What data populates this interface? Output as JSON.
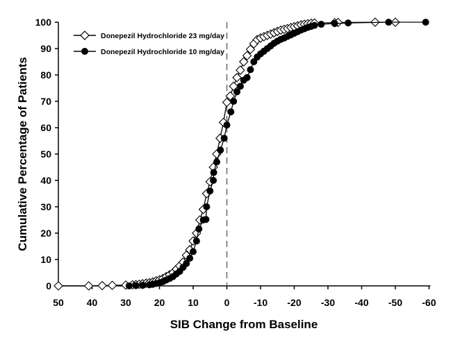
{
  "chart_data": {
    "type": "line",
    "title": "",
    "xlabel": "SIB Change from Baseline",
    "ylabel": "Cumulative Percentage of Patients",
    "xlim": [
      50,
      -60
    ],
    "ylim": [
      0,
      100
    ],
    "x_reversed": true,
    "xticks": [
      "50",
      "40",
      "30",
      "20",
      "10",
      "0",
      "-10",
      "-20",
      "-30",
      "-40",
      "-50",
      "-60"
    ],
    "xtick_values": [
      50,
      40,
      30,
      20,
      10,
      0,
      -10,
      -20,
      -30,
      -40,
      -50,
      -60
    ],
    "yticks": [
      "0",
      "10",
      "20",
      "30",
      "40",
      "50",
      "60",
      "70",
      "80",
      "90",
      "100"
    ],
    "ytick_values": [
      0,
      10,
      20,
      30,
      40,
      50,
      60,
      70,
      80,
      90,
      100
    ],
    "reference_line_x": 0,
    "legend_position": "top-left",
    "series": [
      {
        "name": "Donepezil Hydrochloride 23 mg/day",
        "marker": "open-diamond",
        "x": [
          50,
          41,
          37,
          34,
          30,
          28,
          27,
          26,
          25,
          24,
          23,
          22,
          21,
          20,
          19,
          18,
          17,
          16,
          15,
          14,
          13,
          12,
          11,
          10,
          9,
          8,
          7,
          6,
          5,
          4,
          3,
          2,
          1,
          0,
          -1,
          -2,
          -3,
          -4,
          -5,
          -6,
          -7,
          -8,
          -9,
          -10,
          -11,
          -12,
          -13,
          -14,
          -15,
          -16,
          -17,
          -18,
          -19,
          -20,
          -21,
          -22,
          -23,
          -24,
          -25,
          -26,
          -32,
          -33,
          -44,
          -50
        ],
        "y": [
          0,
          0,
          0.1,
          0.2,
          0.3,
          0.4,
          0.5,
          0.6,
          0.8,
          1,
          1.2,
          1.5,
          1.9,
          2.3,
          2.8,
          3.5,
          4.2,
          5,
          6.3,
          7.6,
          9,
          11.6,
          13.7,
          17,
          20,
          25,
          29,
          35,
          39.5,
          45,
          50,
          56,
          62,
          69.6,
          72,
          75.7,
          79,
          81.8,
          85,
          87.3,
          89.7,
          91.8,
          93.4,
          94,
          94.5,
          95,
          95.5,
          96,
          96.5,
          97,
          97.3,
          97.6,
          98,
          98.3,
          98.6,
          99,
          99.2,
          99.4,
          99.6,
          99.7,
          99.8,
          99.9,
          100,
          100
        ]
      },
      {
        "name": "Donepezil Hydrochloride 10 mg/day",
        "marker": "filled-circle",
        "x": [
          29,
          27,
          25,
          23,
          22,
          21,
          20,
          19,
          18,
          17,
          16,
          15,
          14,
          13,
          12,
          11,
          10,
          9,
          8.3,
          7,
          6.2,
          6,
          5,
          4,
          3.9,
          3,
          1.9,
          0.8,
          0,
          -1.2,
          -2,
          -3,
          -4,
          -5,
          -6,
          -7,
          -8,
          -9,
          -10,
          -11,
          -12,
          -13,
          -14,
          -15,
          -16,
          -17,
          -18,
          -19,
          -20,
          -21,
          -22,
          -23,
          -24,
          -25,
          -26,
          -28,
          -32,
          -36,
          -48,
          -59
        ],
        "y": [
          0,
          0.1,
          0.2,
          0.4,
          0.6,
          0.9,
          1.2,
          1.6,
          2.2,
          2.8,
          3.5,
          4.5,
          5.5,
          7,
          8.5,
          10.5,
          13,
          17,
          21.6,
          25,
          25.2,
          30,
          36,
          40,
          43,
          47,
          51.5,
          56,
          61,
          66,
          70,
          73.6,
          75.7,
          78,
          79,
          82,
          85,
          86.8,
          88,
          89,
          90,
          91,
          92,
          92.8,
          93.5,
          94,
          94.6,
          95.2,
          95.8,
          96.4,
          97,
          97.5,
          98,
          98.4,
          98.8,
          99.2,
          99.5,
          99.7,
          100,
          100
        ]
      }
    ]
  }
}
